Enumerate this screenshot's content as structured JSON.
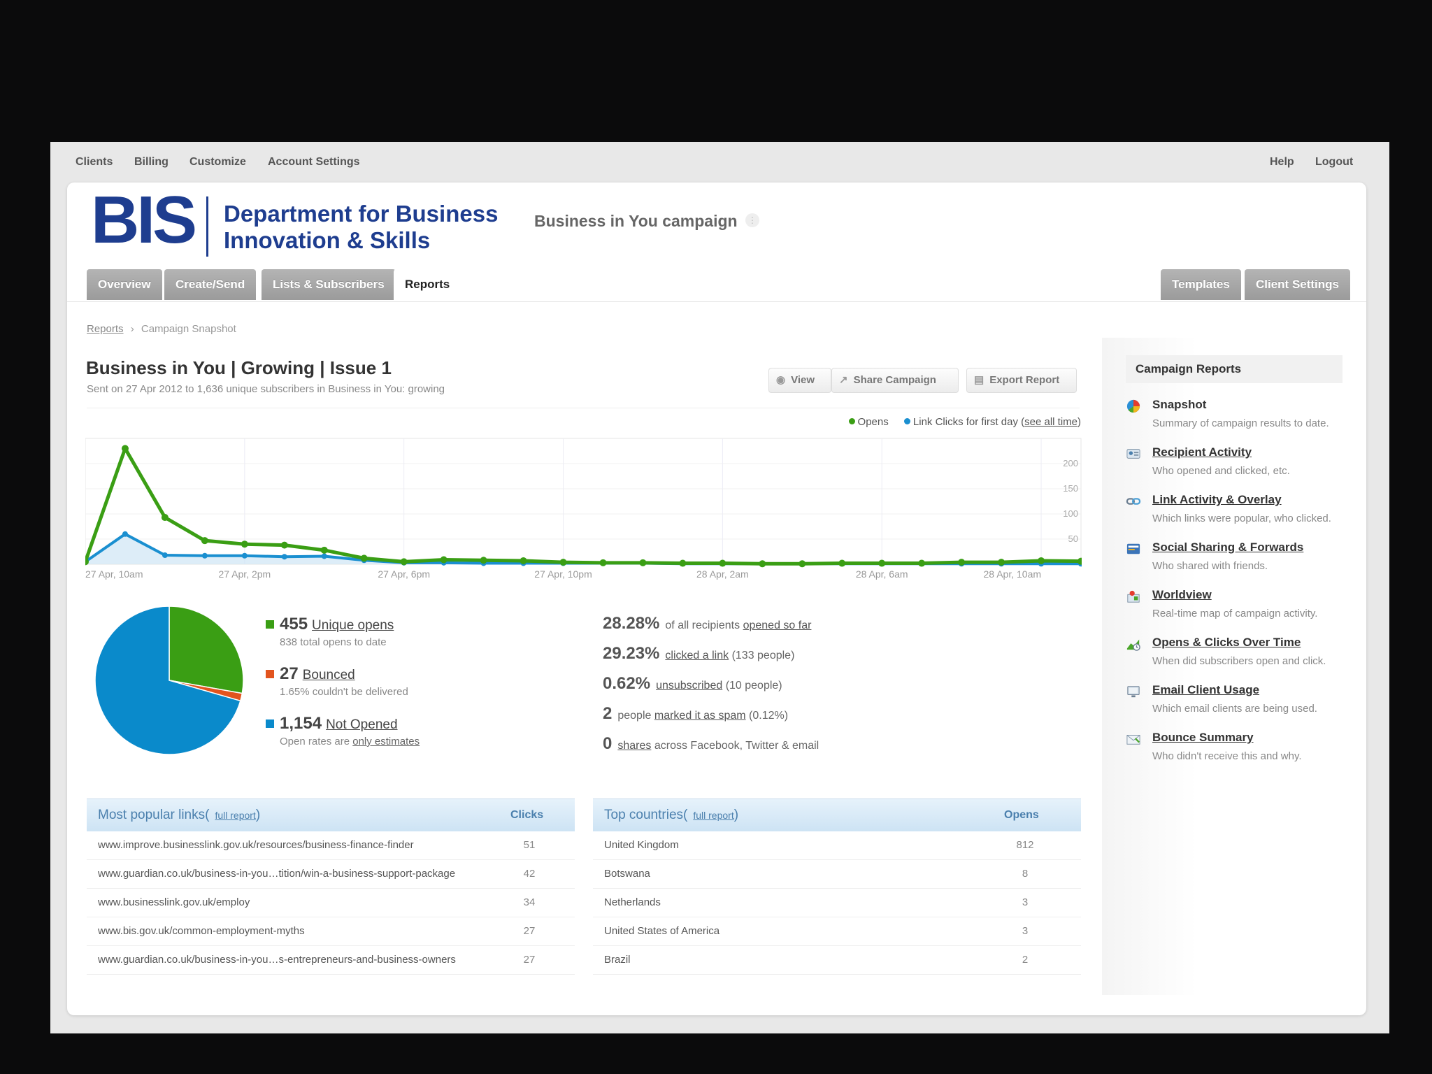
{
  "topnav": {
    "left": [
      "Clients",
      "Billing",
      "Customize",
      "Account Settings"
    ],
    "right": [
      "Help",
      "Logout"
    ]
  },
  "logo": {
    "mark": "BIS",
    "line1": "Department for Business",
    "line2": "Innovation & Skills"
  },
  "campaign_title": "Business in You campaign",
  "tabs": [
    "Overview",
    "Create/Send",
    "Lists & Subscribers",
    "Reports"
  ],
  "right_tabs": [
    "Templates",
    "Client Settings"
  ],
  "breadcrumb": {
    "link": "Reports",
    "sep": "›",
    "current": "Campaign Snapshot"
  },
  "report": {
    "title": "Business in You | Growing | Issue 1",
    "subtitle": "Sent on 27 Apr 2012 to 1,636 unique subscribers in Business in You: growing"
  },
  "buttons": {
    "view": "View",
    "share": "Share Campaign",
    "export": "Export Report"
  },
  "colors": {
    "opens": "#3a9e14",
    "clicks": "#1a8fd0",
    "bounced": "#e2541e",
    "not_opened": "#0a8acb"
  },
  "chart_data": {
    "type": "line",
    "x": [
      "27 Apr, 10am",
      "27 Apr, 11am",
      "27 Apr, 12pm",
      "27 Apr, 1pm",
      "27 Apr, 2pm",
      "27 Apr, 3pm",
      "27 Apr, 4pm",
      "27 Apr, 5pm",
      "27 Apr, 6pm",
      "27 Apr, 7pm",
      "27 Apr, 8pm",
      "27 Apr, 9pm",
      "27 Apr, 10pm",
      "27 Apr, 11pm",
      "28 Apr, 12am",
      "28 Apr, 1am",
      "28 Apr, 2am",
      "28 Apr, 3am",
      "28 Apr, 4am",
      "28 Apr, 5am",
      "28 Apr, 6am",
      "28 Apr, 7am",
      "28 Apr, 8am",
      "28 Apr, 9am",
      "28 Apr, 10am",
      "28 Apr, 11am"
    ],
    "x_tick_labels": [
      "27 Apr, 10am",
      "27 Apr, 2pm",
      "27 Apr, 6pm",
      "27 Apr, 10pm",
      "28 Apr, 2am",
      "28 Apr, 6am",
      "28 Apr, 10am"
    ],
    "y_ticks": [
      50,
      100,
      150,
      200
    ],
    "ylim": [
      0,
      250
    ],
    "series": [
      {
        "name": "Opens",
        "values": [
          5,
          230,
          93,
          47,
          40,
          38,
          28,
          12,
          5,
          9,
          8,
          7,
          4,
          3,
          3,
          2,
          2,
          1,
          1,
          2,
          2,
          2,
          4,
          4,
          7,
          6
        ]
      },
      {
        "name": "Link Clicks for first day",
        "values": [
          5,
          60,
          18,
          17,
          17,
          15,
          16,
          8,
          3,
          3,
          2,
          2,
          2,
          2,
          2,
          1,
          1,
          1,
          1,
          1,
          1,
          1,
          1,
          1,
          1,
          1
        ]
      }
    ],
    "legend": {
      "opens": "Opens",
      "clicks": "Link Clicks for first day",
      "see_all": "see all time"
    }
  },
  "pie": {
    "opened": 455,
    "bounced": 27,
    "not_opened": 1154
  },
  "stats": {
    "opens": {
      "num": "455",
      "label": "Unique opens",
      "desc": "838 total opens to date"
    },
    "bounced": {
      "num": "27",
      "label": "Bounced",
      "desc": "1.65% couldn't be delivered"
    },
    "not_opened": {
      "num": "1,154",
      "label": "Not Opened",
      "desc_pre": "Open rates are",
      "desc_link": "only estimates"
    }
  },
  "metrics": [
    {
      "num": "28.28%",
      "pre": "of all recipients",
      "link": "opened so far",
      "post": ""
    },
    {
      "num": "29.23%",
      "pre": "",
      "link": "clicked a link",
      "post": "(133 people)"
    },
    {
      "num": "0.62%",
      "pre": "",
      "link": "unsubscribed",
      "post": "(10 people)"
    },
    {
      "num": "2",
      "pre": "people",
      "link": "marked it as spam",
      "post": "(0.12%)"
    },
    {
      "num": "0",
      "pre": "",
      "link": "shares",
      "post": "across Facebook, Twitter & email"
    }
  ],
  "links_table": {
    "title": "Most popular links",
    "full_report": "full report",
    "col": "Clicks",
    "rows": [
      {
        "url": "www.improve.businesslink.gov.uk/resources/business-finance-finder",
        "clicks": "51"
      },
      {
        "url": "www.guardian.co.uk/business-in-you…tition/win-a-business-support-package",
        "clicks": "42"
      },
      {
        "url": "www.businesslink.gov.uk/employ",
        "clicks": "34"
      },
      {
        "url": "www.bis.gov.uk/common-employment-myths",
        "clicks": "27"
      },
      {
        "url": "www.guardian.co.uk/business-in-you…s-entrepreneurs-and-business-owners",
        "clicks": "27"
      }
    ]
  },
  "countries_table": {
    "title": "Top countries",
    "full_report": "full report",
    "col": "Opens",
    "rows": [
      {
        "country": "United Kingdom",
        "opens": "812"
      },
      {
        "country": "Botswana",
        "opens": "8"
      },
      {
        "country": "Netherlands",
        "opens": "3"
      },
      {
        "country": "United States of America",
        "opens": "3"
      },
      {
        "country": "Brazil",
        "opens": "2"
      }
    ]
  },
  "sidebar": {
    "heading": "Campaign Reports",
    "items": [
      {
        "title": "Snapshot",
        "desc": "Summary of campaign results to date.",
        "icon": "pie-chart-icon"
      },
      {
        "title": "Recipient Activity",
        "desc": "Who opened and clicked, etc.",
        "icon": "contact-card-icon"
      },
      {
        "title": "Link Activity & Overlay",
        "desc": "Which links were popular, who clicked.",
        "icon": "link-icon"
      },
      {
        "title": "Social Sharing & Forwards",
        "desc": "Who shared with friends.",
        "icon": "share-icon"
      },
      {
        "title": "Worldview",
        "desc": "Real-time map of campaign activity.",
        "icon": "map-icon"
      },
      {
        "title": "Opens & Clicks Over Time",
        "desc": "When did subscribers open and click.",
        "icon": "graph-icon"
      },
      {
        "title": "Email Client Usage",
        "desc": "Which email clients are being used.",
        "icon": "monitor-icon"
      },
      {
        "title": "Bounce Summary",
        "desc": "Who didn't receive this and why.",
        "icon": "envelope-icon"
      }
    ]
  }
}
